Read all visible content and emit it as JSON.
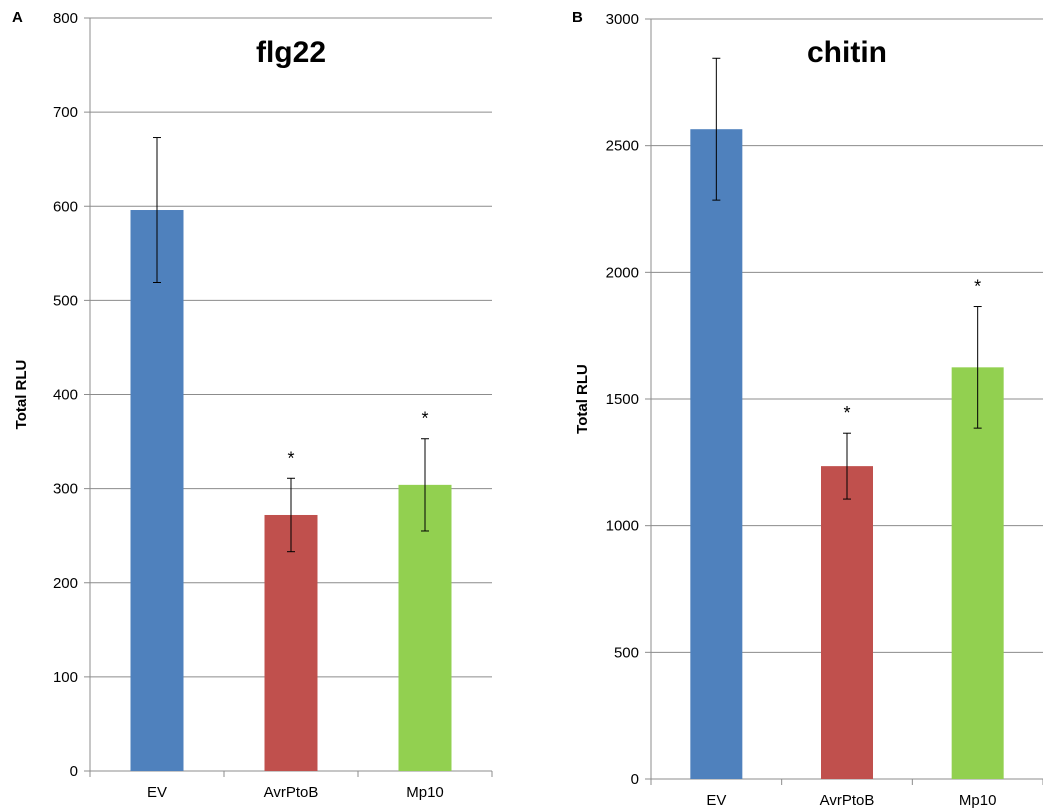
{
  "colors": {
    "EV": "#4F81BD",
    "AvrPtoB": "#C0504D",
    "Mp10": "#92D050",
    "grid": "#8c8c8c",
    "axis": "#8c8c8c",
    "text": "#000000"
  },
  "chart_data": [
    {
      "panel_label": "A",
      "type": "bar",
      "title": "flg22",
      "xlabel": "",
      "ylabel": "Total RLU",
      "ylim": [
        0,
        800
      ],
      "yticks": [
        0,
        100,
        200,
        300,
        400,
        500,
        600,
        700,
        800
      ],
      "ytick_labels": [
        "0",
        "100",
        "200",
        "300",
        "400",
        "500",
        "600",
        "700",
        "800"
      ],
      "grid": true,
      "categories": [
        "EV",
        "AvrPtoB",
        "Mp10"
      ],
      "values": [
        596,
        272,
        304
      ],
      "error": [
        77,
        39,
        49
      ],
      "annotations": [
        "",
        "*",
        "*"
      ]
    },
    {
      "panel_label": "B",
      "type": "bar",
      "title": "chitin",
      "xlabel": "",
      "ylabel": "Total RLU",
      "ylim": [
        0,
        3000
      ],
      "yticks": [
        0,
        500,
        1000,
        1500,
        2000,
        2500,
        3000
      ],
      "ytick_labels": [
        "0",
        "500",
        "1000",
        "1500",
        "2000",
        "2500",
        "3000"
      ],
      "grid": true,
      "categories": [
        "EV",
        "AvrPtoB",
        "Mp10"
      ],
      "values": [
        2565,
        1235,
        1625
      ],
      "error": [
        280,
        130,
        240
      ],
      "annotations": [
        "",
        "*",
        "*"
      ]
    }
  ]
}
